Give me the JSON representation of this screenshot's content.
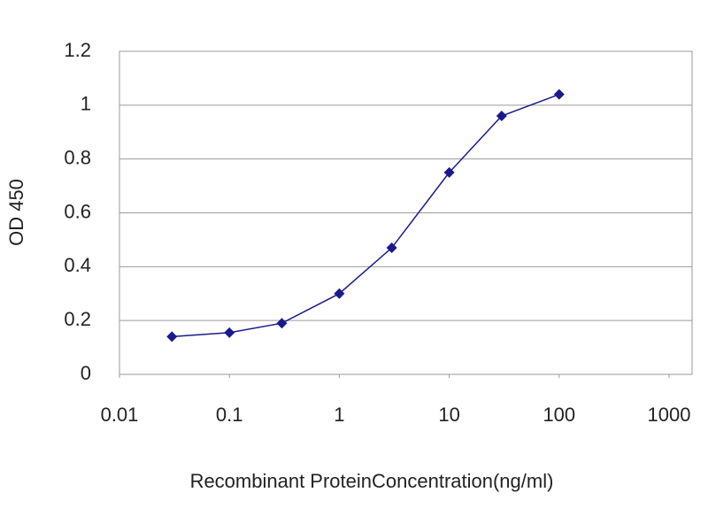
{
  "chart_data": {
    "type": "line",
    "x_label": "Recombinant ProteinConcentration(ng/ml)",
    "y_label": "OD 450",
    "x": [
      0.03,
      0.1,
      0.3,
      1,
      3,
      10,
      30,
      100
    ],
    "series": [
      {
        "color": "#1a1a8c",
        "values": [
          0.14,
          0.155,
          0.19,
          0.3,
          0.47,
          0.75,
          0.96,
          1.04
        ]
      }
    ],
    "xlim": [
      0.01,
      1000
    ],
    "xticks": [
      0.01,
      0.1,
      1,
      10,
      100,
      1000
    ],
    "x_log": true,
    "ylim": [
      0,
      1.2
    ],
    "yticks": [
      0,
      0.2,
      0.4,
      0.6,
      0.8,
      1,
      1.2
    ],
    "grid": true
  }
}
